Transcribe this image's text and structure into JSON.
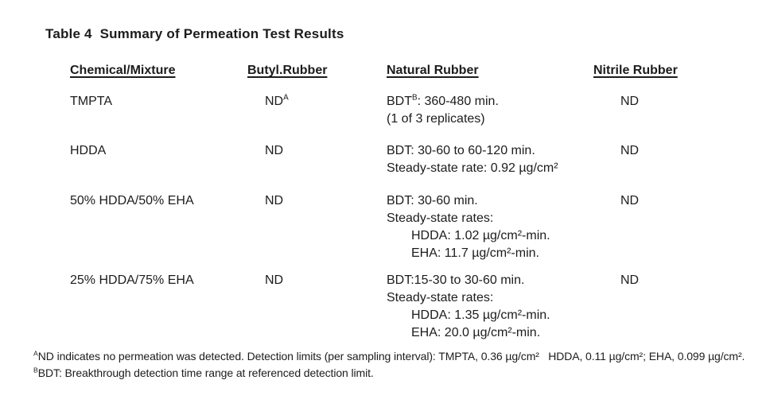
{
  "title": "Table 4  Summary of Permeation Test Results",
  "table": {
    "headers": {
      "chemical": "Chemical/Mixture",
      "butyl": "Butyl.Rubber",
      "natural": "Natural Rubber",
      "nitrile": "Nitrile Rubber"
    },
    "rows": [
      {
        "chemical": "TMPTA",
        "butyl": {
          "text": "ND",
          "sup": "A"
        },
        "natural": [
          {
            "pre": "BDT",
            "sup": "B",
            "post": ": 360-480 min."
          },
          {
            "text": "(1 of 3 replicates)"
          }
        ],
        "nitrile": "ND"
      },
      {
        "chemical": "HDDA",
        "butyl": {
          "text": "ND",
          "sup": ""
        },
        "natural": [
          {
            "text": "BDT: 30-60 to 60-120 min."
          },
          {
            "text": "Steady-state rate: 0.92 µg/cm²"
          }
        ],
        "nitrile": "ND"
      },
      {
        "chemical": "50% HDDA/50% EHA",
        "butyl": {
          "text": "ND",
          "sup": ""
        },
        "natural": [
          {
            "text": "BDT: 30-60 min."
          },
          {
            "text": "Steady-state rates:"
          },
          {
            "text": "HDDA: 1.02 µg/cm²-min."
          },
          {
            "text": "EHA: 11.7 µg/cm²-min."
          }
        ],
        "nitrile": "ND"
      },
      {
        "chemical": "25% HDDA/75% EHA",
        "butyl": {
          "text": "ND",
          "sup": ""
        },
        "natural": [
          {
            "text": "BDT:15-30 to 30-60 min."
          },
          {
            "text": "Steady-state rates:"
          },
          {
            "text": "HDDA: 1.35 µg/cm²-min."
          },
          {
            "text": "EHA: 20.0 µg/cm²-min."
          }
        ],
        "nitrile": "ND"
      }
    ]
  },
  "footnotes": [
    {
      "sup": "A",
      "text": "ND indicates no permeation was detected. Detection limits (per sampling interval): TMPTA, 0.36 µg/cm²   HDDA, 0.11 µg/cm²; EHA, 0.099 µg/cm²."
    },
    {
      "sup": "B",
      "text": "BDT: Breakthrough detection time range at referenced detection limit."
    }
  ],
  "colors": {
    "text": "#1c1c1c",
    "background": "#ffffff"
  }
}
